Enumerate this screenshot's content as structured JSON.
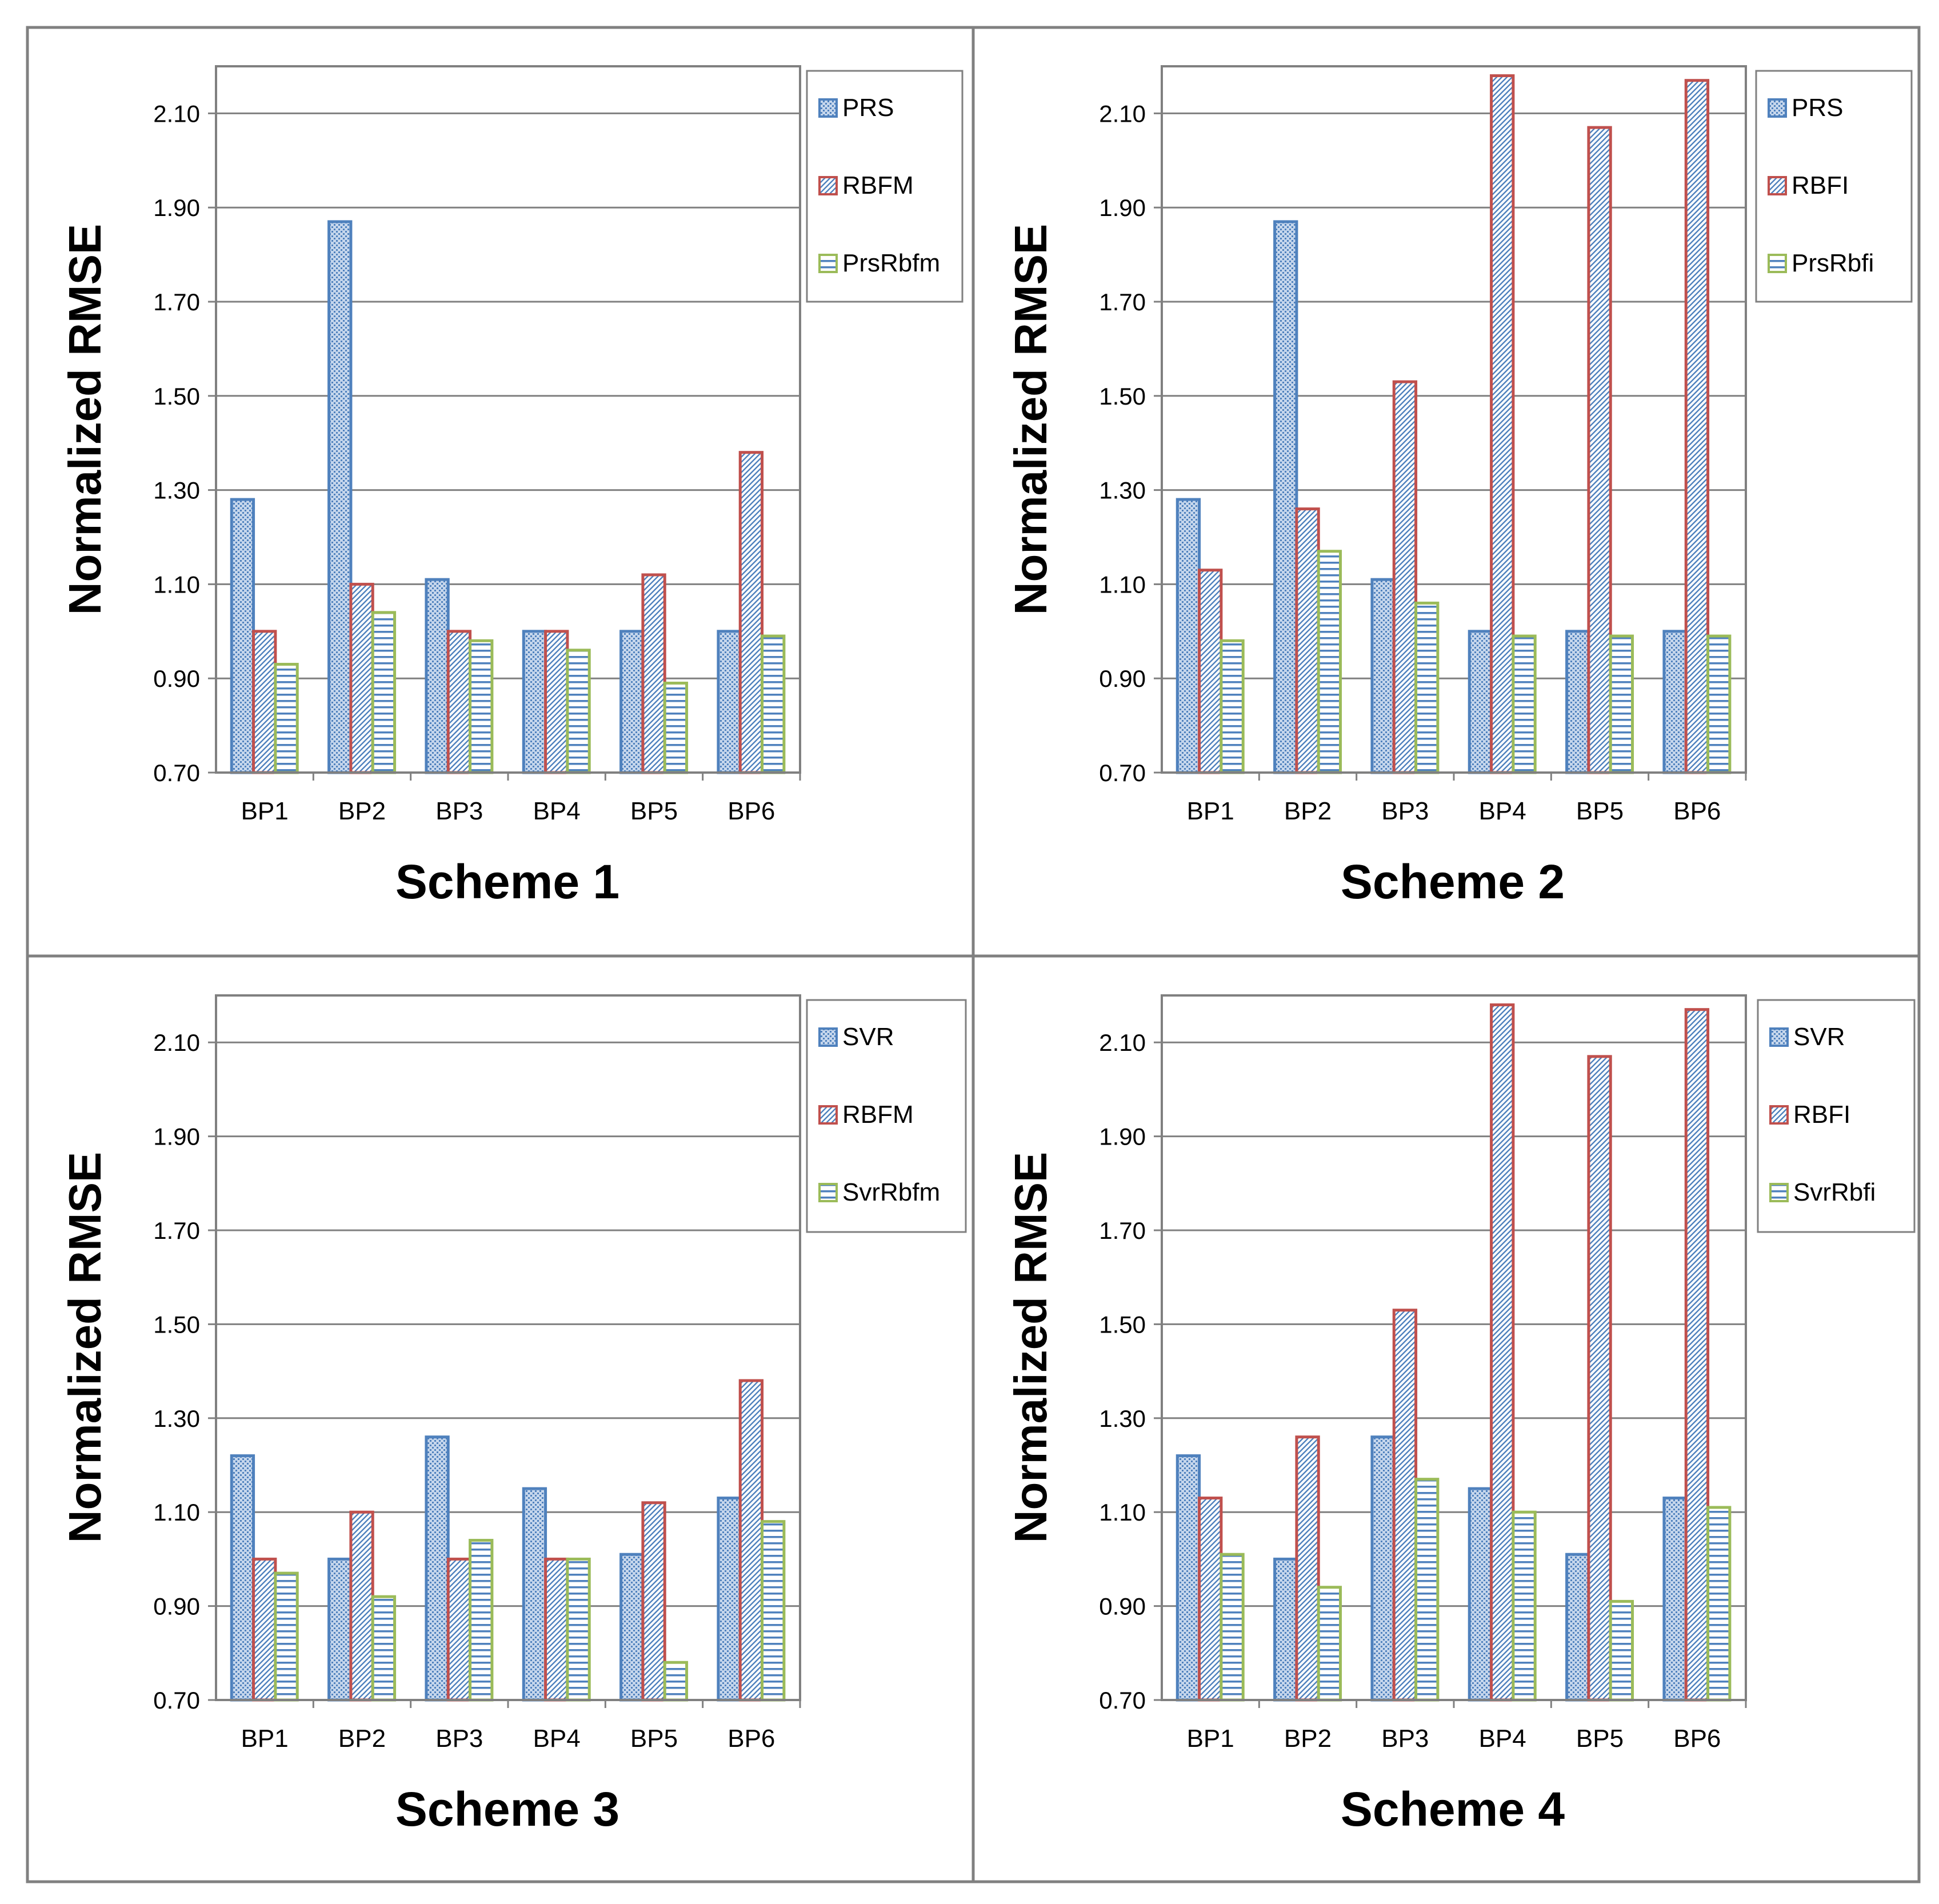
{
  "chart_data": [
    {
      "type": "bar",
      "title": "Scheme 1",
      "ylabel": "Normalized  RMSE",
      "xlabel": "",
      "ylim": [
        0.7,
        2.2
      ],
      "yticks": [
        "0.70",
        "0.90",
        "1.10",
        "1.30",
        "1.50",
        "1.70",
        "1.90",
        "2.10"
      ],
      "categories": [
        "BP1",
        "BP2",
        "BP3",
        "BP4",
        "BP5",
        "BP6"
      ],
      "legend_position": "top-right",
      "grid": true,
      "series": [
        {
          "name": "PRS",
          "values": [
            1.28,
            1.87,
            1.11,
            1.0,
            1.0,
            1.0
          ]
        },
        {
          "name": "RBFM",
          "values": [
            1.0,
            1.1,
            1.0,
            1.0,
            1.12,
            1.38
          ]
        },
        {
          "name": "PrsRbfm",
          "values": [
            0.93,
            1.04,
            0.98,
            0.96,
            0.89,
            0.99
          ]
        }
      ]
    },
    {
      "type": "bar",
      "title": "Scheme 2",
      "ylabel": "Normalized  RMSE",
      "xlabel": "",
      "ylim": [
        0.7,
        2.2
      ],
      "yticks": [
        "0.70",
        "0.90",
        "1.10",
        "1.30",
        "1.50",
        "1.70",
        "1.90",
        "2.10"
      ],
      "categories": [
        "BP1",
        "BP2",
        "BP3",
        "BP4",
        "BP5",
        "BP6"
      ],
      "legend_position": "top-right",
      "grid": true,
      "series": [
        {
          "name": "PRS",
          "values": [
            1.28,
            1.87,
            1.11,
            1.0,
            1.0,
            1.0
          ]
        },
        {
          "name": "RBFI",
          "values": [
            1.13,
            1.26,
            1.53,
            2.18,
            2.07,
            2.17
          ]
        },
        {
          "name": "PrsRbfi",
          "values": [
            0.98,
            1.17,
            1.06,
            0.99,
            0.99,
            0.99
          ]
        }
      ]
    },
    {
      "type": "bar",
      "title": "Scheme 3",
      "ylabel": "Normalized  RMSE",
      "xlabel": "",
      "ylim": [
        0.7,
        2.2
      ],
      "yticks": [
        "0.70",
        "0.90",
        "1.10",
        "1.30",
        "1.50",
        "1.70",
        "1.90",
        "2.10"
      ],
      "categories": [
        "BP1",
        "BP2",
        "BP3",
        "BP4",
        "BP5",
        "BP6"
      ],
      "legend_position": "top-right",
      "grid": true,
      "series": [
        {
          "name": "SVR",
          "values": [
            1.22,
            1.0,
            1.26,
            1.15,
            1.01,
            1.13
          ]
        },
        {
          "name": "RBFM",
          "values": [
            1.0,
            1.1,
            1.0,
            1.0,
            1.12,
            1.38
          ]
        },
        {
          "name": "SvrRbfm",
          "values": [
            0.97,
            0.92,
            1.04,
            1.0,
            0.78,
            1.08
          ]
        }
      ]
    },
    {
      "type": "bar",
      "title": "Scheme 4",
      "ylabel": "Normalized  RMSE",
      "xlabel": "",
      "ylim": [
        0.7,
        2.2
      ],
      "yticks": [
        "0.70",
        "0.90",
        "1.10",
        "1.30",
        "1.50",
        "1.70",
        "1.90",
        "2.10"
      ],
      "categories": [
        "BP1",
        "BP2",
        "BP3",
        "BP4",
        "BP5",
        "BP6"
      ],
      "legend_position": "top-right",
      "grid": true,
      "series": [
        {
          "name": "SVR",
          "values": [
            1.22,
            1.0,
            1.26,
            1.15,
            1.01,
            1.13
          ]
        },
        {
          "name": "RBFI",
          "values": [
            1.13,
            1.26,
            1.53,
            2.18,
            2.07,
            2.17
          ]
        },
        {
          "name": "SvrRbfi",
          "values": [
            1.01,
            0.94,
            1.17,
            1.1,
            0.91,
            1.11
          ]
        }
      ]
    }
  ],
  "colors": {
    "series1_stroke": "#4f81bd",
    "series1_fill": "#9bbbe0",
    "series2_stroke": "#c0504d",
    "series2_fill": "#a9b9d8",
    "series3_stroke": "#9bbb59",
    "series3_fill": "#4f81bd",
    "grid": "#808080",
    "frame": "#808080"
  }
}
